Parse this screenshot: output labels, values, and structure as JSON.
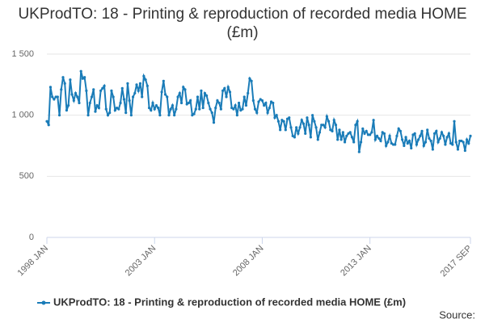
{
  "chart_data": {
    "type": "line",
    "title": "UKProdTO: 18 - Printing & reproduction of recorded media HOME (£m)",
    "source": "Source:",
    "categories": [
      "1998 JAN",
      null,
      null,
      null,
      null,
      null,
      null,
      null,
      null,
      null,
      null,
      null,
      null,
      null,
      null,
      null,
      null,
      null,
      null,
      null,
      null,
      null,
      null,
      null,
      null,
      null,
      null,
      null,
      null,
      null,
      null,
      null,
      null,
      null,
      null,
      null,
      null,
      null,
      null,
      null,
      null,
      null,
      null,
      null,
      null,
      null,
      null,
      null,
      null,
      null,
      null,
      null,
      null,
      null,
      null,
      null,
      null,
      null,
      null,
      null,
      "2003 JAN",
      null,
      null,
      null,
      null,
      null,
      null,
      null,
      null,
      null,
      null,
      null,
      null,
      null,
      null,
      null,
      null,
      null,
      null,
      null,
      null,
      null,
      null,
      null,
      null,
      null,
      null,
      null,
      null,
      null,
      null,
      null,
      null,
      null,
      null,
      null,
      null,
      null,
      null,
      null,
      null,
      null,
      null,
      null,
      null,
      null,
      null,
      null,
      null,
      null,
      null,
      null,
      null,
      null,
      null,
      null,
      null,
      null,
      null,
      null,
      "2008 JAN",
      null,
      null,
      null,
      null,
      null,
      null,
      null,
      null,
      null,
      null,
      null,
      null,
      null,
      null,
      null,
      null,
      null,
      null,
      null,
      null,
      null,
      null,
      null,
      null,
      null,
      null,
      null,
      null,
      null,
      null,
      null,
      null,
      null,
      null,
      null,
      null,
      null,
      null,
      null,
      null,
      null,
      null,
      null,
      null,
      null,
      null,
      null,
      null,
      null,
      null,
      null,
      null,
      null,
      null,
      null,
      null,
      null,
      null,
      null,
      "2013 JAN",
      null,
      null,
      null,
      null,
      null,
      null,
      null,
      null,
      null,
      null,
      null,
      null,
      null,
      null,
      null,
      null,
      null,
      null,
      null,
      null,
      null,
      null,
      null,
      null,
      null,
      null,
      null,
      null,
      null,
      null,
      null,
      null,
      null,
      null,
      null,
      null,
      null,
      null,
      null,
      null,
      null,
      null,
      null,
      null,
      null,
      null,
      null,
      null,
      null,
      null,
      null,
      null,
      null,
      null,
      null,
      "2017 SEP"
    ],
    "series": [
      {
        "name": "UKProdTO: 18 - Printing & reproduction of recorded media HOME (£m)",
        "color": "#1a7cb8",
        "values": [
          950,
          920,
          1230,
          1150,
          1130,
          1150,
          1150,
          1000,
          1210,
          1310,
          1260,
          1040,
          1080,
          1290,
          1170,
          1120,
          1180,
          1150,
          1100,
          1360,
          1300,
          1310,
          1200,
          1000,
          1100,
          1150,
          1210,
          1030,
          1080,
          1060,
          1200,
          1220,
          1240,
          1050,
          1000,
          1020,
          1200,
          1150,
          1040,
          1060,
          1050,
          1100,
          1220,
          1130,
          1020,
          1260,
          1120,
          1000,
          1150,
          1180,
          1250,
          1200,
          1260,
          1150,
          1320,
          1290,
          1240,
          1060,
          1040,
          1100,
          1050,
          1080,
          1060,
          1000,
          1190,
          1280,
          1170,
          1150,
          1000,
          1050,
          1080,
          1000,
          1050,
          1150,
          1180,
          1100,
          1230,
          1210,
          1090,
          1100,
          1120,
          1000,
          1010,
          1050,
          1150,
          1050,
          1200,
          1060,
          1180,
          1160,
          1100,
          1050,
          1020,
          940,
          1060,
          1120,
          1100,
          1050,
          1200,
          1220,
          1150,
          1230,
          1190,
          1060,
          1050,
          1080,
          1000,
          1100,
          1040,
          1050,
          1150,
          1080,
          1180,
          1300,
          1280,
          1120,
          1050,
          1020,
          1110,
          1130,
          1120,
          1080,
          1100,
          1020,
          1060,
          1110,
          1100,
          980,
          1000,
          950,
          880,
          960,
          950,
          880,
          970,
          980,
          900,
          830,
          820,
          900,
          850,
          900,
          960,
          930,
          850,
          980,
          920,
          820,
          1000,
          950,
          900,
          800,
          860,
          920,
          920,
          900,
          990,
          950,
          880,
          870,
          960,
          920,
          800,
          880,
          800,
          860,
          780,
          830,
          850,
          860,
          820,
          780,
          920,
          950,
          700,
          780,
          890,
          850,
          870,
          840,
          840,
          860,
          960,
          800,
          830,
          810,
          790,
          860,
          850,
          750,
          780,
          830,
          770,
          760,
          760,
          830,
          890,
          870,
          800,
          750,
          820,
          770,
          790,
          730,
          840,
          850,
          760,
          800,
          830,
          870,
          750,
          780,
          880,
          810,
          790,
          720,
          850,
          870,
          780,
          810,
          860,
          830,
          760,
          820,
          850,
          770,
          760,
          950,
          780,
          720,
          790,
          790,
          780,
          710,
          800,
          770,
          830
        ]
      }
    ],
    "ylim": [
      0,
      1500
    ],
    "yticks": [
      0,
      500,
      {
        "value": 1000,
        "label": "1 000"
      },
      {
        "value": 1500,
        "label": "1 500"
      }
    ],
    "grid": true
  }
}
